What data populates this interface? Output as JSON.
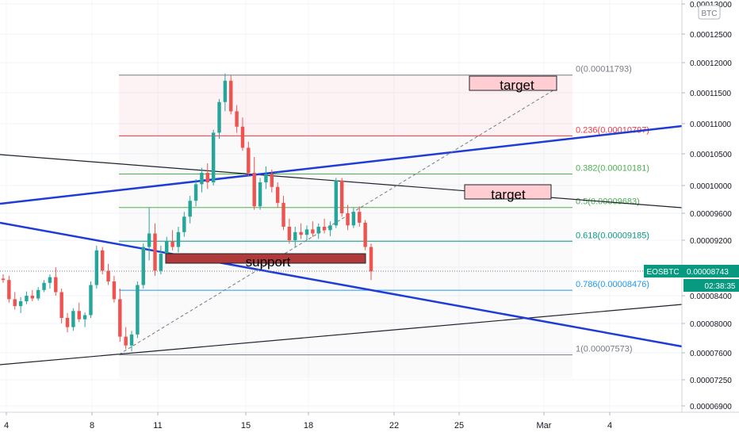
{
  "chart_data": {
    "type": "candlestick",
    "symbol": "EOSBTC",
    "quote_currency": "BTC",
    "current_price": "0.00008743",
    "countdown": "02:38:35",
    "x_tick_labels": [
      "4",
      "8",
      "11",
      "15",
      "18",
      "22",
      "25",
      "Mar",
      "4"
    ],
    "y_tick_labels": [
      "0.00013000",
      "0.00012500",
      "0.00012000",
      "0.00011500",
      "0.00011000",
      "0.00010500",
      "0.00010000",
      "0.00009600",
      "0.00009200",
      "0.00008800",
      "0.00008400",
      "0.00008000",
      "0.00007600",
      "0.00007250",
      "0.00006900"
    ],
    "y_tick_values": [
      0.00013,
      0.000125,
      0.00012,
      0.000115,
      0.00011,
      0.000105,
      0.0001,
      9.6e-05,
      9.2e-05,
      8.8e-05,
      8.4e-05,
      8e-05,
      7.6e-05,
      7.25e-05,
      6.9e-05
    ],
    "fib_levels": [
      {
        "label": "0(0.00011793)",
        "value": 0.00011793,
        "color": "#787b86"
      },
      {
        "label": "0.236(0.00010797)",
        "value": 0.00010797,
        "color": "#f23645"
      },
      {
        "label": "0.382(0.00010181)",
        "value": 0.00010181,
        "color": "#4caf50"
      },
      {
        "label": "0.5(0.00009683)",
        "value": 9.683e-05,
        "color": "#4caf50"
      },
      {
        "label": "0.618(0.00009185)",
        "value": 9.185e-05,
        "color": "#089981"
      },
      {
        "label": "0.786(0.00008476)",
        "value": 8.476e-05,
        "color": "#2196f3"
      },
      {
        "label": "1(0.00007573)",
        "value": 7.573e-05,
        "color": "#787b86"
      }
    ],
    "annotations": [
      "target",
      "target",
      "support"
    ],
    "candles": [
      [
        8.64e-05,
        8.7e-05,
        8.58e-05,
        8.62e-05
      ],
      [
        8.62e-05,
        8.68e-05,
        8.3e-05,
        8.35e-05
      ],
      [
        8.35e-05,
        8.45e-05,
        8.2e-05,
        8.25e-05
      ],
      [
        8.25e-05,
        8.38e-05,
        8.15e-05,
        8.32e-05
      ],
      [
        8.32e-05,
        8.46e-05,
        8.28e-05,
        8.4e-05
      ],
      [
        8.4e-05,
        8.48e-05,
        8.32e-05,
        8.36e-05
      ],
      [
        8.36e-05,
        8.52e-05,
        8.33e-05,
        8.48e-05
      ],
      [
        8.48e-05,
        8.62e-05,
        8.45e-05,
        8.58e-05
      ],
      [
        8.58e-05,
        8.7e-05,
        8.5e-05,
        8.66e-05
      ],
      [
        8.66e-05,
        8.8e-05,
        8.4e-05,
        8.45e-05
      ],
      [
        8.45e-05,
        8.5e-05,
        8e-05,
        8.08e-05
      ],
      [
        8.08e-05,
        8.15e-05,
        7.88e-05,
        7.95e-05
      ],
      [
        7.95e-05,
        8.22e-05,
        7.9e-05,
        8.18e-05
      ],
      [
        8.18e-05,
        8.3e-05,
        8.02e-05,
        8.06e-05
      ],
      [
        8.06e-05,
        8.16e-05,
        7.95e-05,
        8.12e-05
      ],
      [
        8.12e-05,
        8.6e-05,
        8.08e-05,
        8.55e-05
      ],
      [
        8.55e-05,
        9.12e-05,
        8.5e-05,
        9.05e-05
      ],
      [
        9.05e-05,
        9.1e-05,
        8.7e-05,
        8.75e-05
      ],
      [
        8.75e-05,
        8.85e-05,
        8.55e-05,
        8.6e-05
      ],
      [
        8.6e-05,
        8.68e-05,
        8.3e-05,
        8.35e-05
      ],
      [
        8.35e-05,
        8.5e-05,
        7.75e-05,
        7.82e-05
      ],
      [
        7.82e-05,
        7.95e-05,
        7.65e-05,
        7.7e-05
      ],
      [
        7.7e-05,
        7.9e-05,
        7.62e-05,
        7.85e-05
      ],
      [
        7.85e-05,
        8.6e-05,
        7.8e-05,
        8.55e-05
      ],
      [
        8.55e-05,
        9.15e-05,
        8.5e-05,
        9.1e-05
      ],
      [
        9.1e-05,
        9.68e-05,
        8.9e-05,
        9.3e-05
      ],
      [
        9.3e-05,
        9.45e-05,
        8.68e-05,
        8.75e-05
      ],
      [
        8.75e-05,
        9.12e-05,
        8.7e-05,
        9e-05
      ],
      [
        9e-05,
        9.25e-05,
        8.95e-05,
        9.18e-05
      ],
      [
        9.18e-05,
        9.35e-05,
        9.05e-05,
        9.1e-05
      ],
      [
        9.1e-05,
        9.4e-05,
        9.02e-05,
        9.32e-05
      ],
      [
        9.32e-05,
        9.62e-05,
        9.25e-05,
        9.55e-05
      ],
      [
        9.55e-05,
        9.85e-05,
        9.45e-05,
        9.78e-05
      ],
      [
        9.78e-05,
        0.000101,
        9.7e-05,
        0.0001002
      ],
      [
        0.0001002,
        0.0001028,
        9.9e-05,
        0.000102
      ],
      [
        0.000102,
        0.0001035,
        9.95e-05,
        0.0001005
      ],
      [
        0.0001005,
        0.000109,
        0.0001,
        0.0001085
      ],
      [
        0.0001085,
        0.000114,
        0.0001075,
        0.0001135
      ],
      [
        0.0001135,
        0.0001182,
        0.000112,
        0.000117
      ],
      [
        0.000117,
        0.0001179,
        0.0001115,
        0.000112
      ],
      [
        0.000112,
        0.000113,
        0.0001085,
        0.0001095
      ],
      [
        0.0001095,
        0.000111,
        0.0001055,
        0.000106
      ],
      [
        0.000106,
        0.000107,
        0.0001015,
        0.000102
      ],
      [
        0.000102,
        0.0001045,
        9.65e-05,
        9.7e-05
      ],
      [
        9.7e-05,
        0.0001012,
        9.65e-05,
        0.0001005
      ],
      [
        0.0001005,
        0.000103,
        9.95e-05,
        0.0001018
      ],
      [
        0.0001018,
        0.0001025,
        9.9e-05,
        9.98e-05
      ],
      [
        9.98e-05,
        0.0001005,
        9.68e-05,
        9.75e-05
      ],
      [
        9.75e-05,
        9.85e-05,
        9.35e-05,
        9.4e-05
      ],
      [
        9.4e-05,
        9.52e-05,
        9.15e-05,
        9.2e-05
      ],
      [
        9.2e-05,
        9.4e-05,
        9.1e-05,
        9.32e-05
      ],
      [
        9.32e-05,
        9.45e-05,
        9.22e-05,
        9.28e-05
      ],
      [
        9.28e-05,
        9.42e-05,
        9.2e-05,
        9.36e-05
      ],
      [
        9.36e-05,
        9.48e-05,
        9.25e-05,
        9.3e-05
      ],
      [
        9.3e-05,
        9.45e-05,
        9.22e-05,
        9.4e-05
      ],
      [
        9.4e-05,
        9.52e-05,
        9.3e-05,
        9.35e-05
      ],
      [
        9.35e-05,
        9.48e-05,
        9.26e-05,
        9.42e-05
      ],
      [
        9.42e-05,
        0.0001012,
        9.38e-05,
        0.0001008
      ],
      [
        0.0001008,
        0.0001012,
        9.55e-05,
        9.6e-05
      ],
      [
        9.6e-05,
        9.72e-05,
        9.35e-05,
        9.42e-05
      ],
      [
        9.42e-05,
        9.68e-05,
        9.38e-05,
        9.62e-05
      ],
      [
        9.62e-05,
        9.7e-05,
        9.4e-05,
        9.46e-05
      ],
      [
        9.46e-05,
        9.5e-05,
        9.05e-05,
        9.1e-05
      ],
      [
        9.1e-05,
        9.15e-05,
        8.62e-05,
        8.74e-05
      ]
    ]
  }
}
